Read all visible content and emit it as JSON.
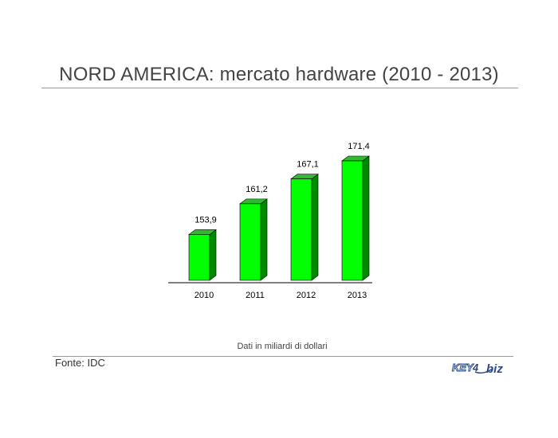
{
  "page": {
    "title": "NORD AMERICA: mercato hardware (2010 - 2013)",
    "note": "Dati in miliardi di dollari",
    "source": "Fonte: IDC",
    "logo": "KEY4biz"
  },
  "chart_data": {
    "type": "bar",
    "categories": [
      "2010",
      "2011",
      "2012",
      "2013"
    ],
    "values": [
      153.9,
      161.2,
      167.1,
      171.4
    ],
    "data_labels": [
      "153,9",
      "161,2",
      "167,1",
      "171,4"
    ],
    "title": "",
    "xlabel": "",
    "ylabel": "",
    "grid": false,
    "style": "3d-column",
    "colors": {
      "front": "#00ff00",
      "side": "#008800",
      "top": "#33b833"
    }
  }
}
